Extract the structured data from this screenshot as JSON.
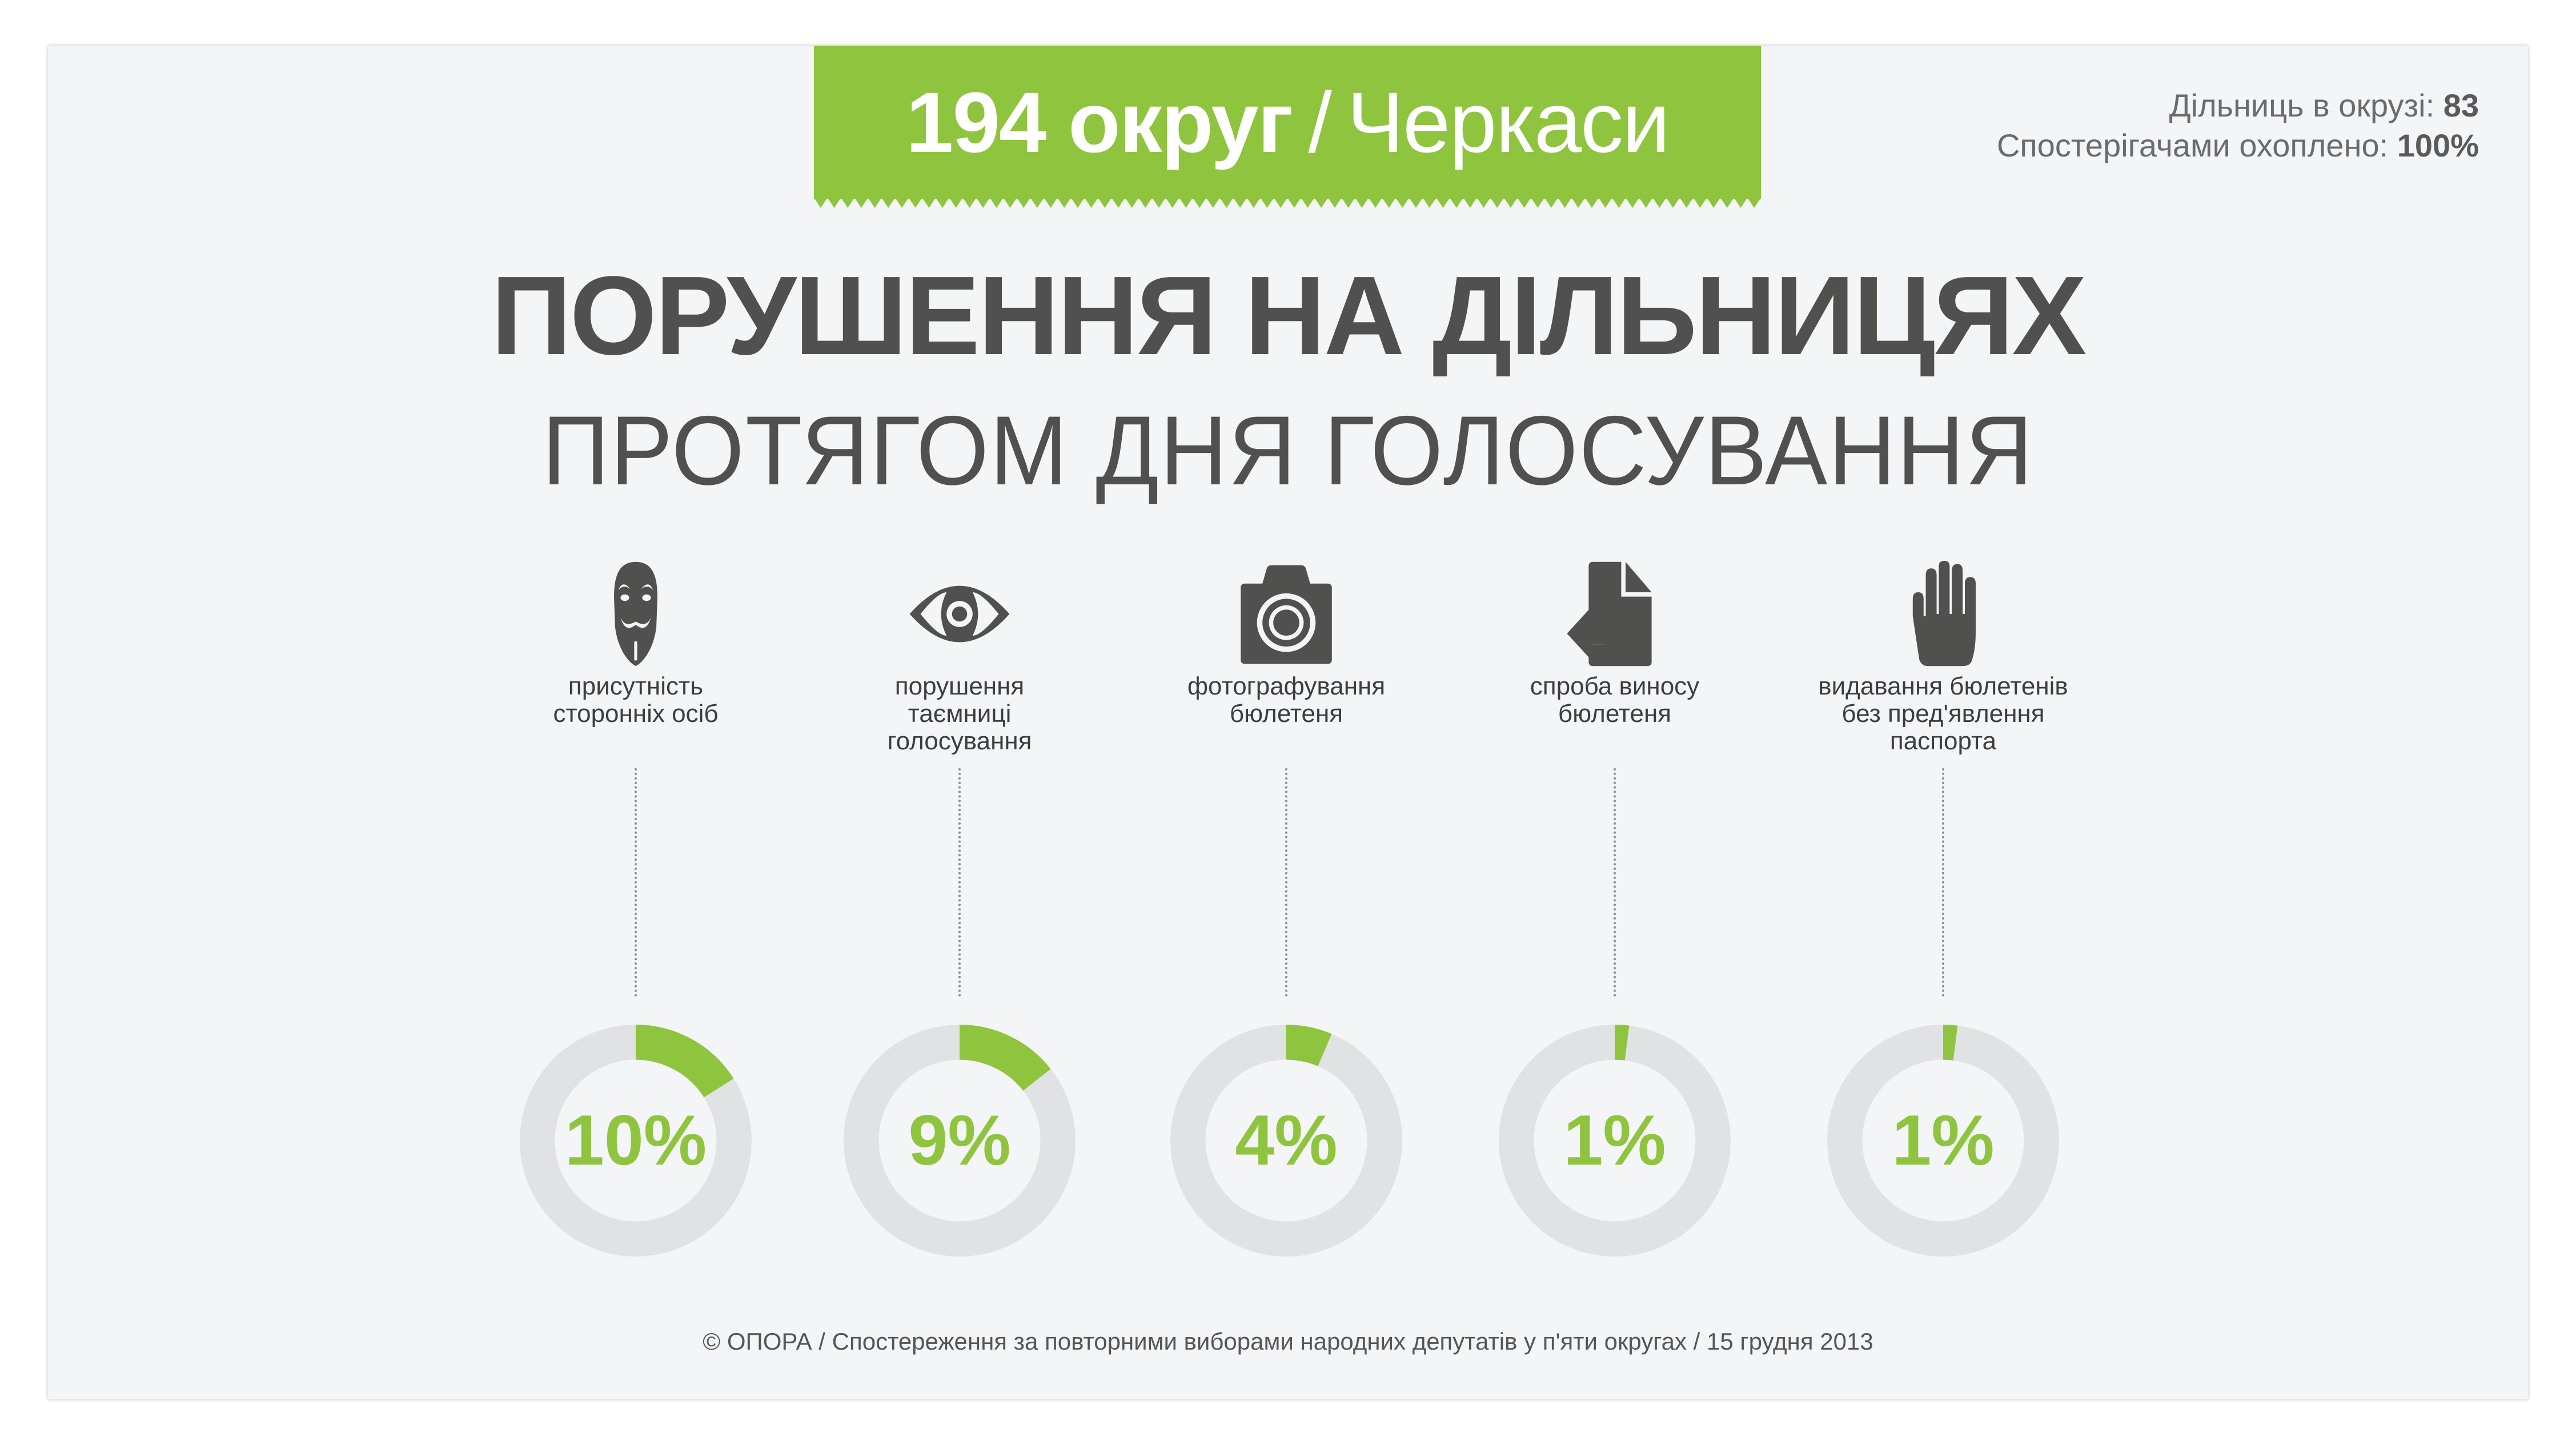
{
  "banner": {
    "district": "194 округ",
    "separator": "/",
    "city": "Черкаси",
    "color": "#8fc43f"
  },
  "stats": {
    "stations_label": "Дільниць в окрузі:",
    "stations_value": "83",
    "coverage_label": "Спостерігачами охоплено:",
    "coverage_value": "100%"
  },
  "title": {
    "main": "ПОРУШЕННЯ НА ДІЛЬНИЦЯХ",
    "sub": "ПРОТЯГОМ ДНЯ ГОЛОСУВАННЯ"
  },
  "violations": [
    {
      "icon": "mask-icon",
      "label_lines": [
        "присутність",
        "сторонніх осіб"
      ],
      "value": "10%",
      "percent": 10
    },
    {
      "icon": "eye-icon",
      "label_lines": [
        "порушення",
        "таємниці",
        "голосування"
      ],
      "value": "9%",
      "percent": 9
    },
    {
      "icon": "camera-icon",
      "label_lines": [
        "фотографування",
        "бюлетеня"
      ],
      "value": "4%",
      "percent": 4
    },
    {
      "icon": "document-exit-icon",
      "label_lines": [
        "спроба виносу",
        "бюлетеня"
      ],
      "value": "1%",
      "percent": 1
    },
    {
      "icon": "hand-icon",
      "label_lines": [
        "видавання бюлетенів",
        "без пред'явлення",
        "паспорта"
      ],
      "value": "1%",
      "percent": 1
    }
  ],
  "chart_data": {
    "type": "pie",
    "title": "ПОРУШЕННЯ НА ДІЛЬНИЦЯХ ПРОТЯГОМ ДНЯ ГОЛОСУВАННЯ",
    "categories": [
      "присутність сторонніх осіб",
      "порушення таємниці голосування",
      "фотографування бюлетеня",
      "спроба виносу бюлетеня",
      "видавання бюлетенів без пред'явлення паспорта"
    ],
    "values": [
      10,
      9,
      4,
      1,
      1
    ],
    "unit": "%",
    "colors": {
      "filled": "#8fc43f",
      "track": "#e1e2e4"
    }
  },
  "footer": "© ОПОРА / Спостереження за повторними виборами народних депутатів  у п'яти округах / 15 грудня 2013"
}
